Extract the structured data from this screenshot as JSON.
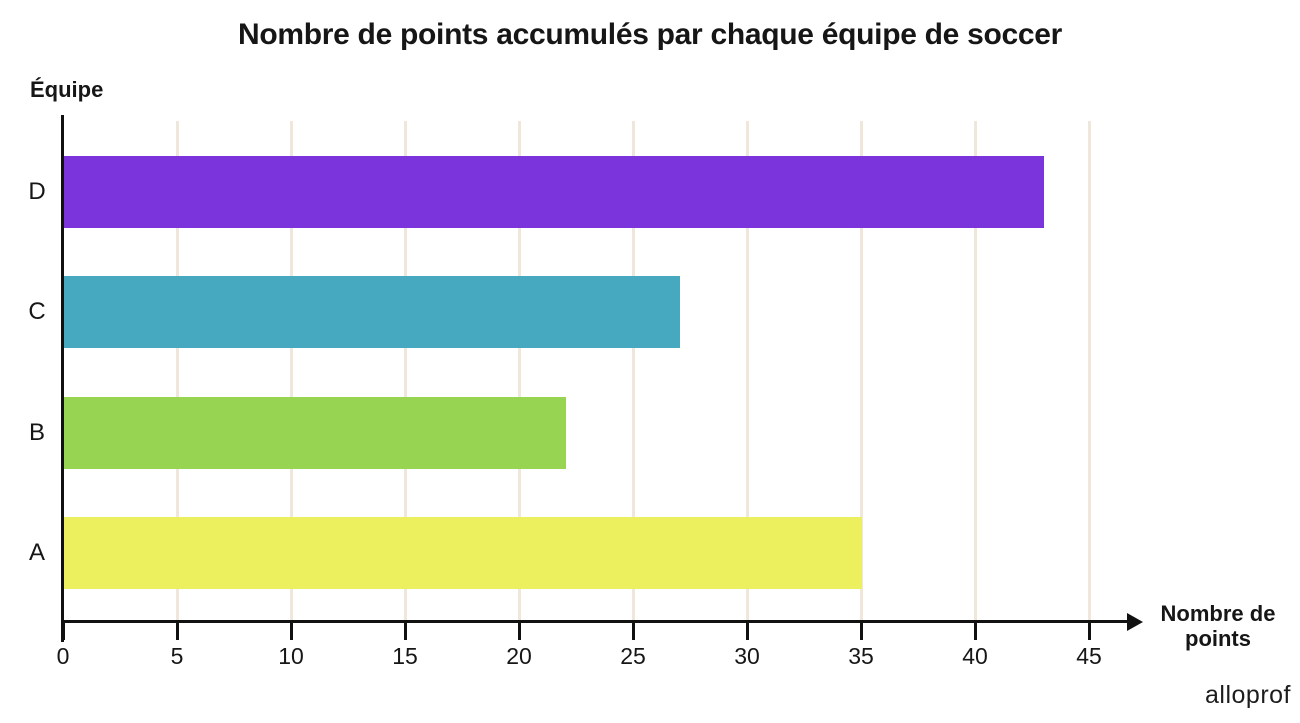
{
  "chart_data": {
    "type": "bar",
    "orientation": "horizontal",
    "title": "Nombre de points accumulés par chaque équipe de soccer",
    "ylabel": "Équipe",
    "xlabel": "Nombre de points",
    "xlabel_lines": [
      "Nombre de",
      "points"
    ],
    "categories": [
      "D",
      "C",
      "B",
      "A"
    ],
    "values": [
      43,
      27,
      22,
      35
    ],
    "bar_colors": [
      "#7B33DB",
      "#47A9BF",
      "#96D452",
      "#ECEF5E"
    ],
    "xlim": [
      0,
      45
    ],
    "xticks": [
      0,
      5,
      10,
      15,
      20,
      25,
      30,
      35,
      40,
      45
    ],
    "grid": true,
    "gridline_color": "#EDE7DD",
    "axis_color": "#111111",
    "text_color": "#161616"
  },
  "branding": {
    "logo_text": "alloprof"
  }
}
